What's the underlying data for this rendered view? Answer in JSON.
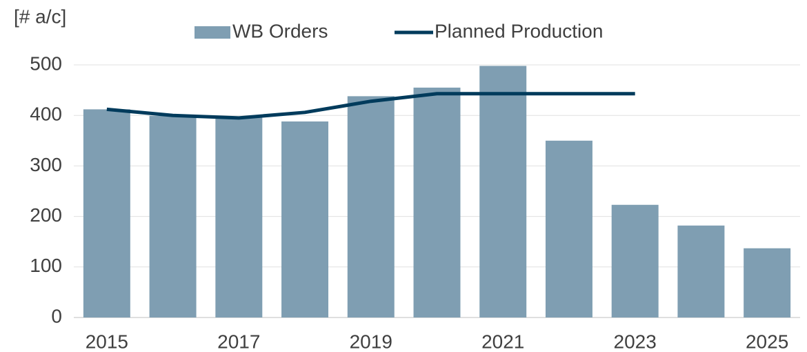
{
  "chart_data": {
    "type": "bar",
    "y_label": "[# a/c]",
    "categories": [
      "2015",
      null,
      "2017",
      null,
      "2019",
      null,
      "2021",
      null,
      "2023",
      null,
      "2025"
    ],
    "series": [
      {
        "name": "WB Orders",
        "type": "bar",
        "color": "#7f9eb2",
        "values": [
          412,
          399,
          397,
          388,
          438,
          455,
          498,
          350,
          223,
          182,
          137
        ]
      },
      {
        "name": "Planned Production",
        "type": "line",
        "color": "#003b5c",
        "values": [
          412,
          400,
          395,
          406,
          428,
          443,
          443,
          443,
          443,
          null,
          null
        ]
      }
    ],
    "ylim": [
      0,
      500
    ],
    "yticks": [
      0,
      100,
      200,
      300,
      400,
      500
    ],
    "grid": true,
    "legend": "top"
  }
}
